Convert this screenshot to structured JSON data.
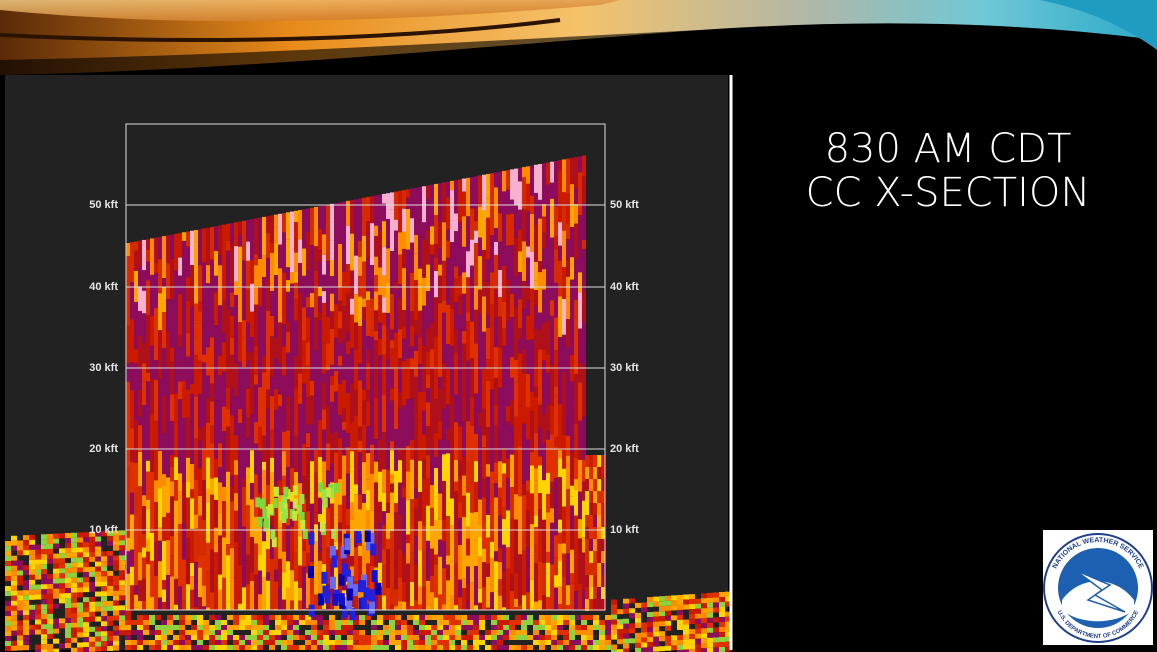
{
  "slide": {
    "title_lines": [
      "830 AM CDT",
      "CC X-SECTION"
    ],
    "axis_labels_left": [
      "50 kft",
      "40 kft",
      "30 kft",
      "20 kft",
      "10 kft"
    ],
    "axis_labels_right": [
      "50 kft",
      "40 kft",
      "30 kft",
      "20 kft",
      "10 kft"
    ],
    "logo": {
      "top_text": "NATIONAL WEATHER SERVICE",
      "bottom_text": "U.S. DEPARTMENT OF COMMERCE"
    }
  }
}
